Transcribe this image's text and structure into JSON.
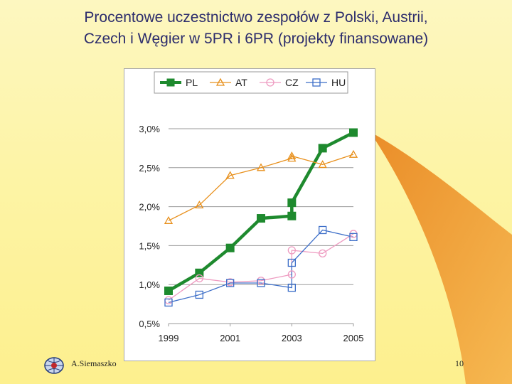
{
  "title": {
    "line1": "Procentowe uczestnictwo zespołów z Polski, Austrii,",
    "line2": "Czech i Węgier w 5PR i 6PR (projekty finansowane)"
  },
  "footer": {
    "author": "A.Siemaszko",
    "page": "10"
  },
  "chart_data": {
    "type": "line",
    "title": "",
    "xlabel": "",
    "ylabel": "",
    "xlim": [
      1999,
      2005
    ],
    "ylim": [
      0.5,
      3.0
    ],
    "grid": true,
    "legend": "top",
    "x_ticks": [
      "1999",
      "2001",
      "2003",
      "2005"
    ],
    "y_ticks": [
      "0,5%",
      "1,0%",
      "1,5%",
      "2,0%",
      "2,5%",
      "3,0%"
    ],
    "series": [
      {
        "name": "PL",
        "color": "#1e8a2e",
        "marker": "filled-square",
        "points": [
          [
            1999,
            0.92
          ],
          [
            2000,
            1.15
          ],
          [
            2001,
            1.47
          ],
          [
            2002,
            1.85
          ],
          [
            2003,
            1.88
          ],
          [
            2003,
            2.05
          ],
          [
            2004,
            2.75
          ],
          [
            2005,
            2.95
          ]
        ]
      },
      {
        "name": "AT",
        "color": "#e8901c",
        "marker": "triangle",
        "points": [
          [
            1999,
            1.82
          ],
          [
            2000,
            2.02
          ],
          [
            2001,
            2.4
          ],
          [
            2002,
            2.5
          ],
          [
            2003,
            2.62
          ],
          [
            2003,
            2.65
          ],
          [
            2004,
            2.54
          ],
          [
            2005,
            2.67
          ]
        ]
      },
      {
        "name": "CZ",
        "color": "#ee9ac0",
        "marker": "circle",
        "points": [
          [
            1999,
            0.8
          ],
          [
            2000,
            1.08
          ],
          [
            2001,
            1.03
          ],
          [
            2002,
            1.05
          ],
          [
            2003,
            1.13
          ],
          [
            2003,
            1.44
          ],
          [
            2004,
            1.4
          ],
          [
            2005,
            1.65
          ]
        ]
      },
      {
        "name": "HU",
        "color": "#3c6ec8",
        "marker": "square",
        "points": [
          [
            1999,
            0.77
          ],
          [
            2000,
            0.87
          ],
          [
            2001,
            1.02
          ],
          [
            2002,
            1.02
          ],
          [
            2003,
            0.96
          ],
          [
            2003,
            1.28
          ],
          [
            2004,
            1.7
          ],
          [
            2005,
            1.61
          ]
        ]
      }
    ]
  }
}
